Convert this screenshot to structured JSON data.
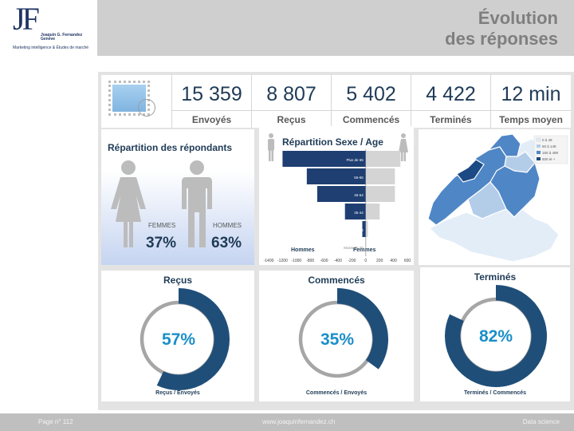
{
  "header": {
    "logo_letters": "JF",
    "logo_name_line1": "Joaquin G. Fernandez",
    "logo_name_line2": "Genève",
    "logo_tagline": "Marketing intelligence & Études de marché",
    "title_line1": "Évolution",
    "title_line2": "des réponses"
  },
  "kpis": [
    {
      "value": "15 359",
      "label": "Envoyés"
    },
    {
      "value": "8 807",
      "label": "Reçus"
    },
    {
      "value": "5 402",
      "label": "Commencés"
    },
    {
      "value": "4 422",
      "label": "Terminés"
    },
    {
      "value": "12 min",
      "label": "Temps moyen"
    }
  ],
  "respondents": {
    "title": "Répartition des répondants",
    "women_label": "FEMMES",
    "women_pct": "37%",
    "men_label": "HOMMES",
    "men_pct": "63%"
  },
  "chart_data": [
    {
      "type": "bar",
      "title": "Répartition Sexe / Age",
      "orientation": "horizontal",
      "categories": [
        "Plus de 65",
        "55-65",
        "45-54",
        "35-44",
        "25-34",
        "Moins de 25"
      ],
      "series": [
        {
          "name": "Hommes",
          "values": [
            -1200,
            -850,
            -700,
            -300,
            -50,
            0
          ]
        },
        {
          "name": "Femmes",
          "values": [
            500,
            420,
            420,
            200,
            30,
            0
          ]
        }
      ],
      "xlim": [
        -1400,
        600
      ],
      "x_ticks": [
        "-1400",
        "-1200",
        "-1000",
        "-800",
        "-600",
        "-400",
        "-200",
        "0",
        "200",
        "400",
        "600"
      ],
      "colors": {
        "Hommes": "#1f3f72",
        "Femmes": "#d4d4d4"
      }
    },
    {
      "type": "pie",
      "title": "Reçus",
      "value": 57,
      "label": "57%",
      "caption": "Reçus / Envoyés"
    },
    {
      "type": "pie",
      "title": "Commencés",
      "value": 35,
      "label": "35%",
      "caption": "Commencés / Envoyés"
    },
    {
      "type": "pie",
      "title": "Terminés",
      "value": 82,
      "label": "82%",
      "caption": "Terminés / Commencés"
    }
  ],
  "map": {
    "legend": [
      "0 à 49",
      "50 à 149",
      "150 à 499",
      "500 et +"
    ],
    "legend_colors": [
      "#e3edf8",
      "#b3cde9",
      "#4f86c6",
      "#1b4a84"
    ]
  },
  "colors": {
    "navy": "#1f4e79",
    "donut_ring": "#a6a6a6",
    "percent_text": "#1a8fc9"
  },
  "footer": {
    "page": "Page n° 112",
    "website": "www.joaquinfernandez.ch",
    "section": "Data science"
  }
}
